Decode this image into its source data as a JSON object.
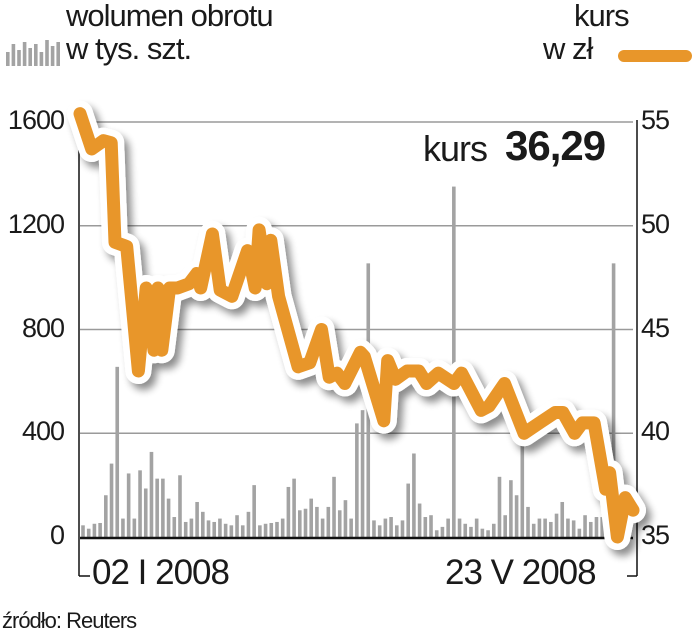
{
  "legend": {
    "volume_line1": "wolumen obrotu",
    "volume_line2": "w tys. szt.",
    "price_line1": "kurs",
    "price_line2": "w zł"
  },
  "current": {
    "label": "kurs",
    "value": "36,29"
  },
  "source": "źródło: Reuters",
  "colors": {
    "price": "#E8962A",
    "volume": "#A3A3A3",
    "grid": "#9A9A9A"
  },
  "chart_data": {
    "type": "bar+line",
    "x_tick_labels": [
      "02 I 2008",
      "23 V 2008"
    ],
    "x_range": [
      "2008-01-02",
      "2008-05-23"
    ],
    "left_axis": {
      "label": "wolumen obrotu w tys. szt.",
      "ylim": [
        0,
        1600
      ],
      "ticks": [
        0,
        400,
        800,
        1200,
        1600
      ]
    },
    "right_axis": {
      "label": "kurs w zł",
      "ylim": [
        35,
        55
      ],
      "ticks": [
        35,
        40,
        45,
        50,
        55
      ]
    },
    "grid": true,
    "volume": [
      45,
      32,
      51,
      54,
      161,
      283,
      656,
      71,
      245,
      71,
      257,
      187,
      328,
      225,
      225,
      148,
      77,
      238,
      58,
      71,
      135,
      97,
      64,
      58,
      71,
      51,
      45,
      84,
      45,
      97,
      200,
      45,
      51,
      54,
      58,
      71,
      193,
      225,
      103,
      109,
      148,
      116,
      71,
      116,
      232,
      103,
      142,
      71,
      438,
      489,
      1055,
      64,
      45,
      71,
      77,
      45,
      64,
      206,
      322,
      129,
      77,
      84,
      26,
      39,
      71,
      1351,
      71,
      51,
      39,
      71,
      32,
      26,
      51,
      232,
      84,
      219,
      161,
      399,
      116,
      51,
      71,
      71,
      58,
      90,
      135,
      71,
      64,
      32,
      84,
      58,
      77,
      77,
      64,
      1055,
      64,
      51
    ],
    "price": [
      [
        "2008-01-02",
        55.4
      ],
      [
        "2008-01-05",
        53.7
      ],
      [
        "2008-01-08",
        54.1
      ],
      [
        "2008-01-10",
        54.0
      ],
      [
        "2008-01-11",
        49.2
      ],
      [
        "2008-01-14",
        49.0
      ],
      [
        "2008-01-17",
        43.0
      ],
      [
        "2008-01-19",
        47.0
      ],
      [
        "2008-01-21",
        44.0
      ],
      [
        "2008-01-22",
        47.0
      ],
      [
        "2008-01-23",
        44.0
      ],
      [
        "2008-01-25",
        47.0
      ],
      [
        "2008-01-27",
        47.0
      ],
      [
        "2008-01-30",
        47.2
      ],
      [
        "2008-02-01",
        47.7
      ],
      [
        "2008-02-02",
        47.0
      ],
      [
        "2008-02-05",
        49.6
      ],
      [
        "2008-02-07",
        46.9
      ],
      [
        "2008-02-10",
        46.6
      ],
      [
        "2008-02-14",
        48.8
      ],
      [
        "2008-02-16",
        47.0
      ],
      [
        "2008-02-17",
        49.8
      ],
      [
        "2008-02-19",
        47.2
      ],
      [
        "2008-02-20",
        49.3
      ],
      [
        "2008-02-22",
        46.6
      ],
      [
        "2008-02-27",
        43.2
      ],
      [
        "2008-03-01",
        43.4
      ],
      [
        "2008-03-04",
        45.0
      ],
      [
        "2008-03-06",
        42.7
      ],
      [
        "2008-03-08",
        42.9
      ],
      [
        "2008-03-10",
        42.4
      ],
      [
        "2008-03-14",
        43.9
      ],
      [
        "2008-03-15",
        43.7
      ],
      [
        "2008-03-20",
        40.6
      ],
      [
        "2008-03-21",
        43.5
      ],
      [
        "2008-03-23",
        42.6
      ],
      [
        "2008-03-26",
        43.0
      ],
      [
        "2008-03-29",
        43.0
      ],
      [
        "2008-03-31",
        42.4
      ],
      [
        "2008-04-03",
        42.9
      ],
      [
        "2008-04-07",
        42.4
      ],
      [
        "2008-04-09",
        42.9
      ],
      [
        "2008-04-14",
        41.1
      ],
      [
        "2008-04-16",
        41.3
      ],
      [
        "2008-04-20",
        42.4
      ],
      [
        "2008-04-25",
        40.0
      ],
      [
        "2008-04-29",
        40.5
      ],
      [
        "2008-05-03",
        41.0
      ],
      [
        "2008-05-05",
        41.0
      ],
      [
        "2008-05-08",
        40.0
      ],
      [
        "2008-05-10",
        40.5
      ],
      [
        "2008-05-13",
        40.5
      ],
      [
        "2008-05-16",
        37.3
      ],
      [
        "2008-05-17",
        38.1
      ],
      [
        "2008-05-19",
        35.0
      ],
      [
        "2008-05-21",
        36.9
      ],
      [
        "2008-05-23",
        36.29
      ]
    ]
  }
}
